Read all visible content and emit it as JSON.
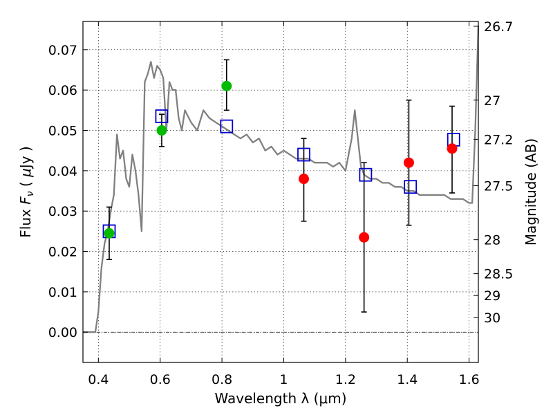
{
  "chart_data": {
    "type": "scatter",
    "xlabel": "Wavelength  λ (μm)",
    "ylabel_parts": [
      "Flux  ",
      "F",
      "ν",
      "  ( ",
      "μ",
      "Jy )"
    ],
    "y2label": "Magnitude (AB)",
    "xlim": [
      0.35,
      1.63
    ],
    "ylim": [
      -0.0075,
      0.077
    ],
    "x_ticks": [
      0.4,
      0.6,
      0.8,
      1.0,
      1.2,
      1.4,
      1.6
    ],
    "x_tick_labels": [
      "0.4",
      "0.6",
      "0.8",
      "1",
      "1.2",
      "1.4",
      "1.6"
    ],
    "y_ticks": [
      0.0,
      0.01,
      0.02,
      0.03,
      0.04,
      0.05,
      0.06,
      0.07
    ],
    "y_tick_labels": [
      "0.00",
      "0.01",
      "0.02",
      "0.03",
      "0.04",
      "0.05",
      "0.06",
      "0.07"
    ],
    "y2_ticks": [
      {
        "label": "26.7",
        "flux": 0.0758
      },
      {
        "label": "27",
        "flux": 0.0575
      },
      {
        "label": "27.2",
        "flux": 0.0478
      },
      {
        "label": "27.5",
        "flux": 0.0363
      },
      {
        "label": "28",
        "flux": 0.0229
      },
      {
        "label": "28.5",
        "flux": 0.0145
      },
      {
        "label": "29",
        "flux": 0.0091
      },
      {
        "label": "30",
        "flux": 0.0036
      }
    ],
    "grid": true,
    "colors": {
      "model": "#808080",
      "green": "#00bb00",
      "red": "#ff0000",
      "box": "#0000cc",
      "err": "#000000"
    },
    "model_spectrum": {
      "x": [
        0.35,
        0.39,
        0.4,
        0.41,
        0.42,
        0.43,
        0.44,
        0.45,
        0.46,
        0.47,
        0.48,
        0.49,
        0.5,
        0.51,
        0.52,
        0.53,
        0.54,
        0.55,
        0.56,
        0.57,
        0.58,
        0.59,
        0.6,
        0.61,
        0.62,
        0.63,
        0.64,
        0.65,
        0.66,
        0.67,
        0.68,
        0.7,
        0.72,
        0.74,
        0.76,
        0.78,
        0.8,
        0.82,
        0.84,
        0.86,
        0.88,
        0.9,
        0.92,
        0.94,
        0.96,
        0.98,
        1.0,
        1.02,
        1.04,
        1.06,
        1.08,
        1.1,
        1.12,
        1.14,
        1.16,
        1.18,
        1.2,
        1.22,
        1.23,
        1.24,
        1.25,
        1.26,
        1.28,
        1.3,
        1.32,
        1.34,
        1.36,
        1.38,
        1.4,
        1.42,
        1.44,
        1.46,
        1.48,
        1.5,
        1.52,
        1.54,
        1.56,
        1.58,
        1.6,
        1.61,
        1.62,
        1.63
      ],
      "y": [
        0.0,
        0.0,
        0.005,
        0.016,
        0.022,
        0.025,
        0.03,
        0.034,
        0.049,
        0.043,
        0.045,
        0.038,
        0.036,
        0.044,
        0.04,
        0.034,
        0.025,
        0.062,
        0.064,
        0.067,
        0.063,
        0.066,
        0.065,
        0.063,
        0.05,
        0.062,
        0.06,
        0.06,
        0.053,
        0.05,
        0.055,
        0.052,
        0.05,
        0.055,
        0.053,
        0.052,
        0.051,
        0.05,
        0.049,
        0.048,
        0.049,
        0.047,
        0.048,
        0.045,
        0.046,
        0.044,
        0.045,
        0.044,
        0.043,
        0.043,
        0.043,
        0.042,
        0.042,
        0.042,
        0.041,
        0.042,
        0.04,
        0.048,
        0.055,
        0.048,
        0.041,
        0.039,
        0.038,
        0.038,
        0.037,
        0.037,
        0.036,
        0.036,
        0.035,
        0.035,
        0.034,
        0.034,
        0.034,
        0.034,
        0.034,
        0.033,
        0.033,
        0.033,
        0.032,
        0.032,
        0.05,
        0.076
      ]
    },
    "green_points": [
      {
        "x": 0.435,
        "y": 0.0245,
        "yerr_low": 0.0065,
        "yerr_high": 0.0065
      },
      {
        "x": 0.605,
        "y": 0.05,
        "yerr_low": 0.004,
        "yerr_high": 0.004
      },
      {
        "x": 0.815,
        "y": 0.061,
        "yerr_low": 0.006,
        "yerr_high": 0.0065
      }
    ],
    "red_points": [
      {
        "x": 1.065,
        "y": 0.038,
        "yerr_low": 0.0105,
        "yerr_high": 0.01
      },
      {
        "x": 1.26,
        "y": 0.0235,
        "yerr_low": 0.0185,
        "yerr_high": 0.0185
      },
      {
        "x": 1.405,
        "y": 0.042,
        "yerr_low": 0.0155,
        "yerr_high": 0.0155
      },
      {
        "x": 1.545,
        "y": 0.0455,
        "yerr_low": 0.011,
        "yerr_high": 0.0105
      }
    ],
    "model_boxes": [
      {
        "x": 0.435,
        "y": 0.025
      },
      {
        "x": 0.605,
        "y": 0.0535
      },
      {
        "x": 0.815,
        "y": 0.051
      },
      {
        "x": 1.065,
        "y": 0.044
      },
      {
        "x": 1.265,
        "y": 0.039
      },
      {
        "x": 1.41,
        "y": 0.036
      },
      {
        "x": 1.55,
        "y": 0.0477
      }
    ]
  }
}
